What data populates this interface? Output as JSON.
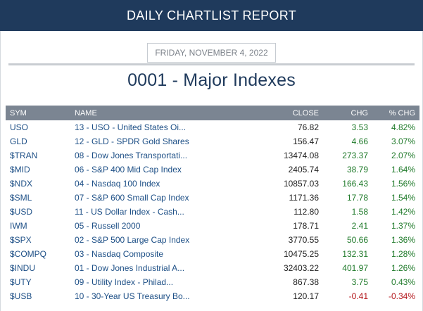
{
  "header": {
    "title": "DAILY CHARTLIST REPORT"
  },
  "report": {
    "date": "FRIDAY, NOVEMBER 4, 2022",
    "title": "0001 - Major Indexes"
  },
  "table": {
    "columns": [
      "SYM",
      "NAME",
      "CLOSE",
      "CHG",
      "% CHG"
    ],
    "rows": [
      {
        "sym": "USO",
        "name": "13 - USO - United States Oi...",
        "close": "76.82",
        "chg": "3.53",
        "pct": "4.82%"
      },
      {
        "sym": "GLD",
        "name": "12 - GLD - SPDR Gold Shares",
        "close": "156.47",
        "chg": "4.66",
        "pct": "3.07%"
      },
      {
        "sym": "$TRAN",
        "name": "08 - Dow Jones Transportati...",
        "close": "13474.08",
        "chg": "273.37",
        "pct": "2.07%"
      },
      {
        "sym": "$MID",
        "name": "06 - S&P 400 Mid Cap Index",
        "close": "2405.74",
        "chg": "38.79",
        "pct": "1.64%"
      },
      {
        "sym": "$NDX",
        "name": "04 - Nasdaq 100 Index",
        "close": "10857.03",
        "chg": "166.43",
        "pct": "1.56%"
      },
      {
        "sym": "$SML",
        "name": "07 - S&P 600 Small Cap Index",
        "close": "1171.36",
        "chg": "17.78",
        "pct": "1.54%"
      },
      {
        "sym": "$USD",
        "name": "11 - US Dollar Index - Cash...",
        "close": "112.80",
        "chg": "1.58",
        "pct": "1.42%"
      },
      {
        "sym": "IWM",
        "name": "05 - Russell 2000",
        "close": "178.71",
        "chg": "2.41",
        "pct": "1.37%"
      },
      {
        "sym": "$SPX",
        "name": "02 - S&P 500 Large Cap Index",
        "close": "3770.55",
        "chg": "50.66",
        "pct": "1.36%"
      },
      {
        "sym": "$COMPQ",
        "name": "03 - Nasdaq Composite",
        "close": "10475.25",
        "chg": "132.31",
        "pct": "1.28%"
      },
      {
        "sym": "$INDU",
        "name": "01 - Dow Jones Industrial A...",
        "close": "32403.22",
        "chg": "401.97",
        "pct": "1.26%"
      },
      {
        "sym": "$UTY",
        "name": "09 - Utility Index - Philad...",
        "close": "867.38",
        "chg": "3.75",
        "pct": "0.43%"
      },
      {
        "sym": "$USB",
        "name": "10 - 30-Year US Treasury Bo...",
        "close": "120.17",
        "chg": "-0.41",
        "pct": "-0.34%"
      }
    ]
  },
  "colors": {
    "header_bg": "#1f3a5c",
    "positive": "#1f7a2a",
    "negative": "#b3151a",
    "link": "#1d4f86"
  }
}
